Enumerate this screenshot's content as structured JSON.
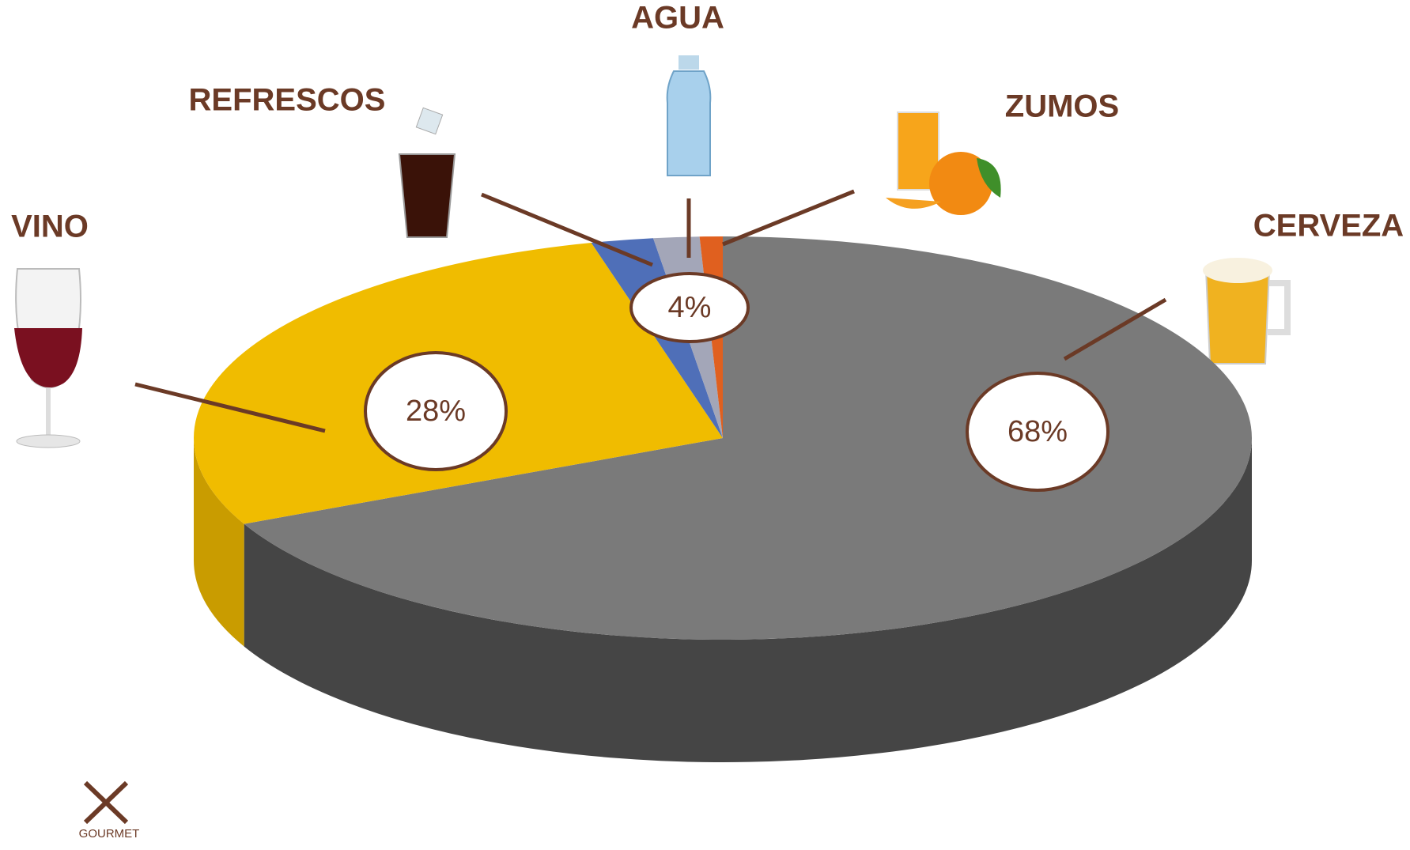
{
  "chart_data": {
    "type": "pie",
    "categories": [
      "CERVEZA",
      "VINO",
      "REFRESCOS",
      "AGUA",
      "ZUMOS"
    ],
    "values": [
      68,
      28,
      1.9,
      1.4,
      0.7
    ],
    "value_labels": [
      "68%",
      "28%",
      null,
      null,
      null
    ],
    "colors": [
      "#7a7a7a",
      "#f0bc00",
      "#4f6fb8",
      "#a3a6b8",
      "#e0601f"
    ],
    "side_colors": [
      "#454545",
      "#c99c00",
      "#3b5694",
      "#80839a",
      "#b44a15"
    ],
    "group_label": {
      "value": 4,
      "label": "4%"
    },
    "logo": "GOURMET"
  }
}
